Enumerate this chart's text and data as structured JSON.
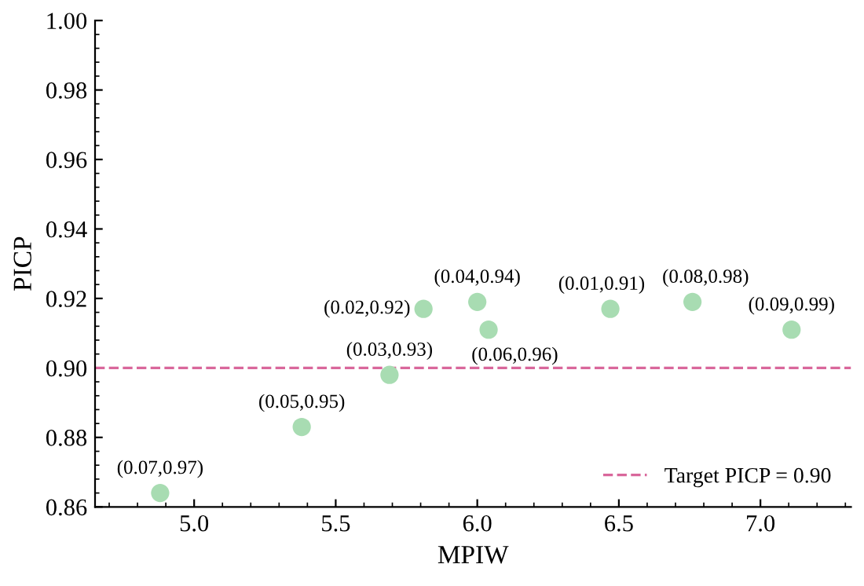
{
  "chart_data": {
    "type": "scatter",
    "xlabel": "MPIW",
    "ylabel": "PICP",
    "x": [
      4.88,
      5.38,
      5.69,
      5.81,
      6.0,
      6.04,
      6.47,
      6.76,
      7.11
    ],
    "series": [
      {
        "color": "#a8dcb2",
        "values": [
          0.864,
          0.883,
          0.898,
          0.917,
          0.919,
          0.911,
          0.917,
          0.919,
          0.911
        ]
      }
    ],
    "value_labels": [
      "(0.07,0.97)",
      "(0.05,0.95)",
      "(0.03,0.93)",
      "(0.02,0.92)",
      "(0.04,0.94)",
      "(0.06,0.96)",
      "(0.01,0.91)",
      "(0.08,0.98)",
      "(0.09,0.99)"
    ],
    "marker": "circle",
    "xlim": [
      4.65,
      7.32
    ],
    "xticks": [
      {
        "value": 5.0,
        "label": "5.0"
      },
      {
        "value": 5.5,
        "label": "5.5"
      },
      {
        "value": 6.0,
        "label": "6.0"
      },
      {
        "value": 6.5,
        "label": "6.5"
      },
      {
        "value": 7.0,
        "label": "7.0"
      }
    ],
    "ylim": [
      0.86,
      1.0
    ],
    "yticks": [
      {
        "value": 0.86,
        "label": "0.86"
      },
      {
        "value": 0.88,
        "label": "0.88"
      },
      {
        "value": 0.9,
        "label": "0.90"
      },
      {
        "value": 0.92,
        "label": "0.92"
      },
      {
        "value": 0.94,
        "label": "0.94"
      },
      {
        "value": 0.96,
        "label": "0.96"
      },
      {
        "value": 0.98,
        "label": "0.98"
      },
      {
        "value": 1.0,
        "label": "1.00"
      }
    ],
    "ref_lines": [
      {
        "axis": "y",
        "value": 0.9,
        "label": "Target PICP = 0.90",
        "color": "#d9679b",
        "line_style": "dashed"
      }
    ],
    "grid": false,
    "legend": "lower right"
  }
}
